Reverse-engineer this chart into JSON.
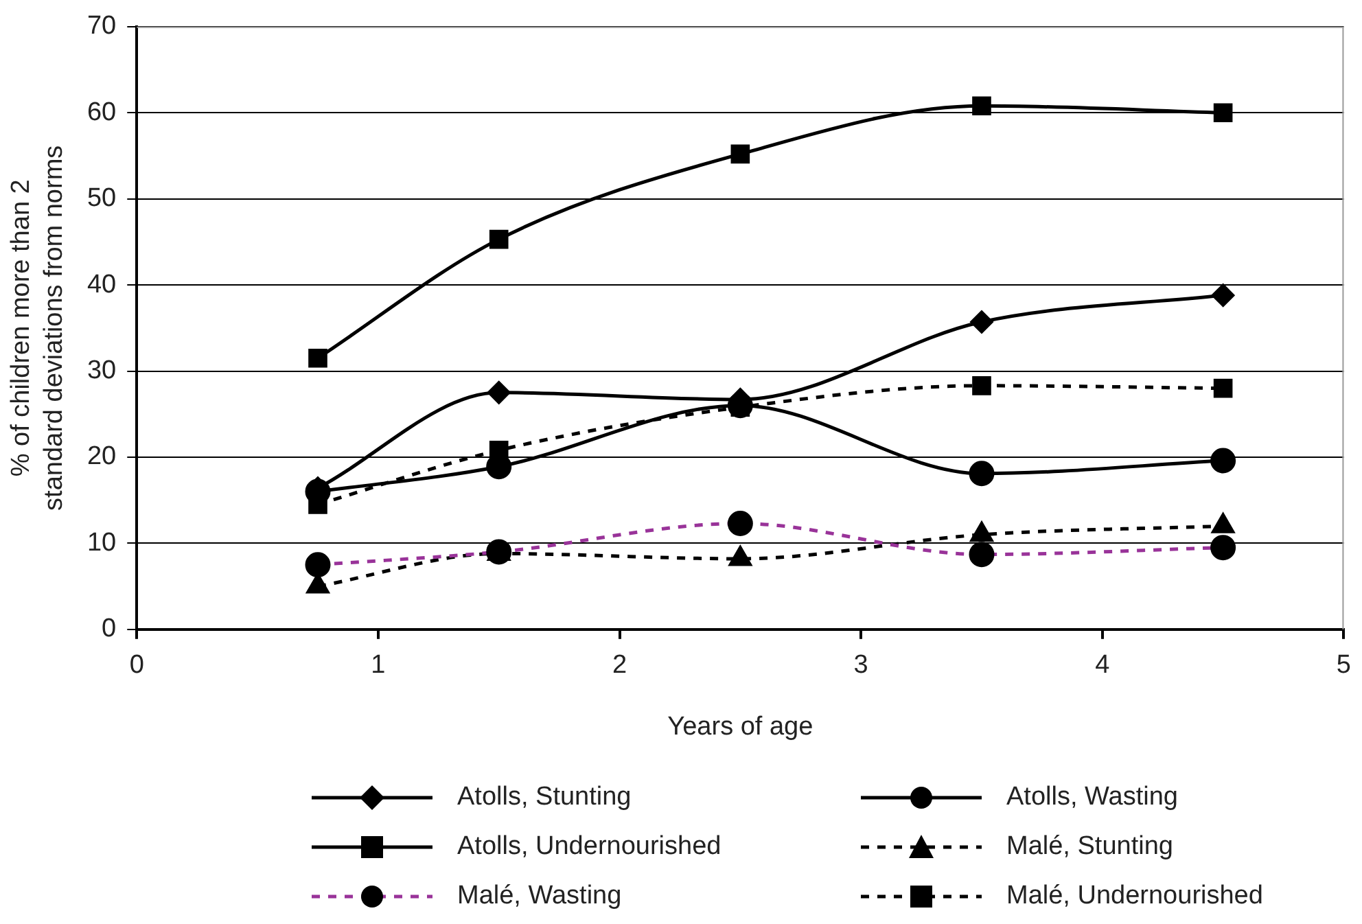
{
  "chart_data": {
    "type": "line",
    "xlabel": "Years of age",
    "ylabel": "% of children more than 2 standard deviations from norms",
    "x": [
      0.75,
      1.5,
      2.5,
      3.5,
      4.5
    ],
    "xlim": [
      0,
      5
    ],
    "xticks": [
      0,
      1,
      2,
      3,
      4,
      5
    ],
    "ylim": [
      0,
      70
    ],
    "yticks": [
      0,
      10,
      20,
      30,
      40,
      50,
      60,
      70
    ],
    "grid": "y",
    "legend": "bottom",
    "series": [
      {
        "name": "Atolls, Stunting",
        "color": "#000000",
        "marker": "diamond",
        "line_style": "solid",
        "values": [
          16.4,
          27.5,
          26.7,
          35.7,
          38.8
        ]
      },
      {
        "name": "Atolls, Undernourished",
        "color": "#000000",
        "marker": "square",
        "line_style": "solid",
        "values": [
          31.5,
          45.3,
          55.2,
          60.8,
          60.0
        ]
      },
      {
        "name": "Malé, Wasting",
        "color": "#993399",
        "marker": "circle",
        "line_style": "dashed",
        "values": [
          7.5,
          9.0,
          12.3,
          8.7,
          9.5
        ]
      },
      {
        "name": "Atolls, Wasting",
        "color": "#000000",
        "marker": "circle",
        "line_style": "solid",
        "values": [
          16.0,
          18.9,
          26.0,
          18.1,
          19.6
        ]
      },
      {
        "name": "Malé, Stunting",
        "color": "#000000",
        "marker": "triangle",
        "line_style": "dashed",
        "values": [
          5.0,
          8.8,
          8.2,
          11.0,
          12.0
        ]
      },
      {
        "name": "Malé, Undernourished",
        "color": "#000000",
        "marker": "square",
        "line_style": "dashed",
        "values": [
          14.5,
          20.8,
          25.8,
          28.3,
          28.0
        ]
      }
    ]
  }
}
